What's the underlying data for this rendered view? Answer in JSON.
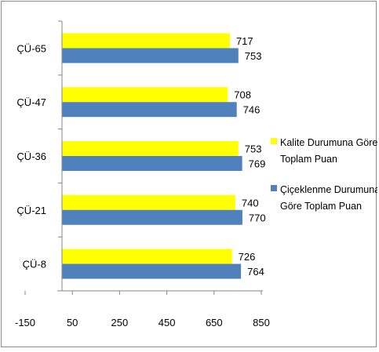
{
  "chart_data": {
    "type": "bar",
    "orientation": "horizontal",
    "categories": [
      "ÇÜ-65",
      "ÇÜ-47",
      "ÇÜ-36",
      "ÇÜ-21",
      "ÇÜ-8"
    ],
    "series": [
      {
        "name": "Kalite Durumuna Göre Toplam Puan",
        "name_lines": [
          "Kalite Durumuna Göre",
          "Toplam Puan"
        ],
        "color": "#ffff00",
        "values": [
          717,
          708,
          753,
          740,
          726
        ],
        "labels": [
          "717",
          "708",
          "753",
          "740",
          "726"
        ]
      },
      {
        "name": "Çiçeklenme Durumuna Göre Toplam Puan",
        "name_lines": [
          "Çiçeklenme Durumuna",
          "Göre Toplam Puan"
        ],
        "color": "#4f81bd",
        "values": [
          753,
          746,
          769,
          770,
          764
        ],
        "labels": [
          "753",
          "746",
          "769",
          "770",
          "764"
        ]
      }
    ],
    "xlim": [
      -150,
      850
    ],
    "xticks": [
      -150,
      50,
      250,
      450,
      650,
      850
    ],
    "xtick_labels": [
      "-150",
      "50",
      "250",
      "450",
      "650",
      "850"
    ],
    "grid": false,
    "legend": "right",
    "title": "",
    "xlabel": "",
    "ylabel": ""
  }
}
